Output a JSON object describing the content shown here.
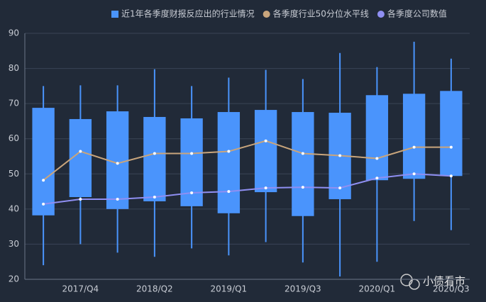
{
  "chart_data": {
    "type": "boxplot",
    "categories": [
      null,
      "2017/Q4",
      null,
      "2018/Q2",
      null,
      "2019/Q1",
      null,
      "2019/Q3",
      null,
      "2020/Q1",
      null,
      "2020/Q3"
    ],
    "box": {
      "name": "近1年各季度财报反应出的行业情况",
      "color": "#4a94fc",
      "high": [
        75,
        75.2,
        75.2,
        79.8,
        75,
        77.4,
        79.6,
        77,
        84.4,
        80.4,
        87.6,
        82.8
      ],
      "q3": [
        68.8,
        65.6,
        67.8,
        66.2,
        65.8,
        67.6,
        68.2,
        67.6,
        67.4,
        72.4,
        72.8,
        73.6
      ],
      "q1": [
        38.2,
        43.4,
        40,
        42.2,
        40.8,
        38.8,
        44.8,
        38,
        42.8,
        48.2,
        48.6,
        49.4
      ],
      "low": [
        24,
        30,
        27.6,
        26.4,
        28.8,
        26.8,
        30.6,
        24.8,
        20.8,
        25,
        36.6,
        34
      ]
    },
    "series": [
      {
        "name": "各季度行业50分位水平线",
        "color": "#c9a57c",
        "values": [
          48.2,
          56.4,
          53,
          55.8,
          55.8,
          56.4,
          59.4,
          55.8,
          55.2,
          54.4,
          57.6,
          57.6
        ]
      },
      {
        "name": "各季度公司数值",
        "color": "#8f8ff2",
        "values": [
          41.4,
          42.8,
          42.8,
          43.4,
          44.6,
          45,
          46,
          46.2,
          46,
          48.8,
          50,
          49.4
        ]
      }
    ],
    "ylim": [
      20,
      90
    ],
    "yticks": [
      20,
      30,
      40,
      50,
      60,
      70,
      80,
      90
    ],
    "grid": true,
    "watermark": "小债看市"
  }
}
